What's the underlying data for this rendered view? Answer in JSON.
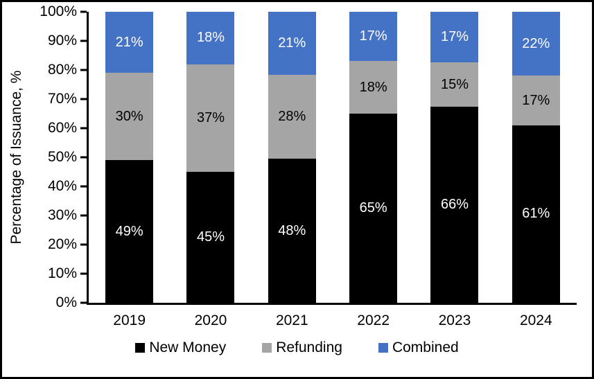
{
  "figure": {
    "background": "#FFFFFF",
    "border_color": "#000000"
  },
  "chart_data": {
    "type": "bar",
    "subtype": "stacked-100-percent",
    "title": "",
    "xlabel": "",
    "ylabel": "Percentage of Issuance, %",
    "categories": [
      "2019",
      "2020",
      "2021",
      "2022",
      "2023",
      "2024"
    ],
    "series": [
      {
        "name": "New Money",
        "color": "#000000",
        "label_color": "#FFFFFF",
        "values": [
          49,
          45,
          48,
          65,
          66,
          61
        ],
        "labels": [
          "49%",
          "45%",
          "48%",
          "65%",
          "66%",
          "61%"
        ]
      },
      {
        "name": "Refunding",
        "color": "#A5A5A5",
        "label_color": "#000000",
        "values": [
          30,
          37,
          28,
          18,
          15,
          17
        ],
        "labels": [
          "30%",
          "37%",
          "28%",
          "18%",
          "15%",
          "17%"
        ]
      },
      {
        "name": "Combined",
        "color": "#4472C4",
        "label_color": "#FFFFFF",
        "values": [
          21,
          18,
          21,
          17,
          17,
          22
        ],
        "labels": [
          "21%",
          "18%",
          "21%",
          "17%",
          "17%",
          "22%"
        ]
      }
    ],
    "y_ticks": [
      "0%",
      "10%",
      "20%",
      "30%",
      "40%",
      "50%",
      "60%",
      "70%",
      "80%",
      "90%",
      "100%"
    ],
    "ylim": [
      0,
      100
    ],
    "grid": false,
    "legend_position": "bottom"
  }
}
